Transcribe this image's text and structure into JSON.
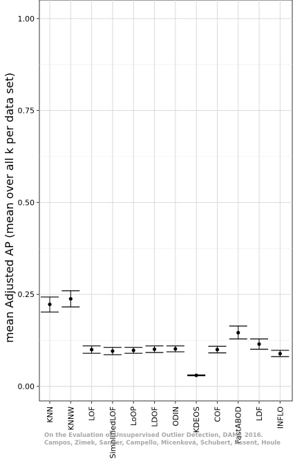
{
  "chart_data": {
    "type": "scatter",
    "ylabel": "mean Adjusted AP (mean over all k per data set)",
    "xlabel": "",
    "ylim": [
      0.0,
      1.05
    ],
    "y_ticks": [
      "0.00",
      "0.25",
      "0.50",
      "0.75",
      "1.00"
    ],
    "grid": true,
    "categories": [
      "KNN",
      "KNNW",
      "LOF",
      "SimplifiedLOF",
      "LoOP",
      "LDOF",
      "ODIN",
      "KDEOS",
      "COF",
      "FastABOD",
      "LDF",
      "INFLO"
    ],
    "series": [
      {
        "values": [
          0.223,
          0.238,
          0.1,
          0.096,
          0.098,
          0.101,
          0.102,
          0.03,
          0.1,
          0.146,
          0.115,
          0.089
        ],
        "lower": [
          0.202,
          0.216,
          0.09,
          0.086,
          0.09,
          0.092,
          0.094,
          0.029,
          0.091,
          0.129,
          0.101,
          0.081
        ],
        "upper": [
          0.243,
          0.26,
          0.11,
          0.106,
          0.106,
          0.11,
          0.11,
          0.031,
          0.109,
          0.164,
          0.129,
          0.098
        ]
      }
    ],
    "watermark": [
      "On the Evaluation of Unsupervised Outlier Detection, DAMI, 2016.",
      "Campos, Zimek, Sander, Campello, Micenková, Schubert, Assent, Houle"
    ]
  }
}
